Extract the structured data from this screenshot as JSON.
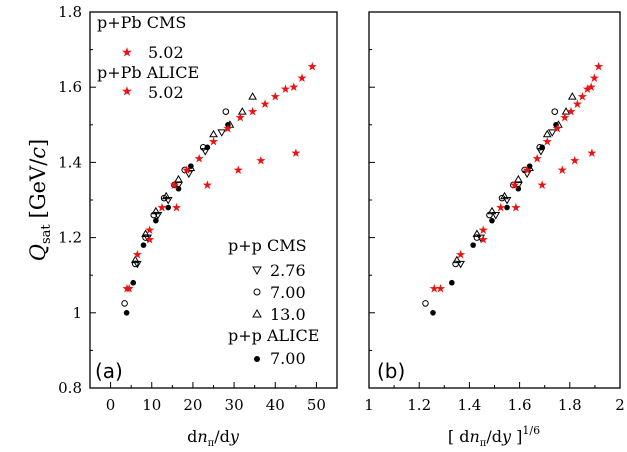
{
  "chart_data": [
    {
      "id": "a",
      "type": "scatter",
      "panel_label": "(a)",
      "xlabel": "dnπ/dy",
      "ylabel": "Qsat [GeV/c]",
      "xlim": [
        -5,
        55
      ],
      "ylim": [
        0.8,
        1.8
      ],
      "xticks": [
        0,
        10,
        20,
        30,
        40,
        50
      ],
      "yticks": [
        0.8,
        1.0,
        1.2,
        1.4,
        1.6,
        1.8
      ],
      "ytick_labels": [
        "0.8",
        "1",
        "1.2",
        "1.4",
        "1.6",
        "1.8"
      ],
      "legend_groups": [
        {
          "title": "p+Pb CMS",
          "location": "top-left",
          "entries": [
            {
              "label": "5.02",
              "marker": "star-red"
            }
          ]
        },
        {
          "title": "p+Pb ALICE",
          "location": "top-left",
          "entries": [
            {
              "label": "5.02",
              "marker": "star-red"
            }
          ]
        },
        {
          "title": "p+p CMS",
          "location": "center-right",
          "entries": [
            {
              "label": "2.76",
              "marker": "triangle-down-open"
            },
            {
              "label": "7.00",
              "marker": "circle-open"
            },
            {
              "label": "13.0",
              "marker": "triangle-up-open"
            }
          ]
        },
        {
          "title": "p+p ALICE",
          "location": "center-right",
          "entries": [
            {
              "label": "7.00",
              "marker": "circle-filled"
            }
          ]
        }
      ],
      "series": [
        {
          "marker": "circle-filled",
          "color": "#000000",
          "points": [
            [
              3.9,
              1.0
            ],
            [
              5.5,
              1.08
            ],
            [
              8.0,
              1.18
            ],
            [
              11.0,
              1.245
            ],
            [
              14.0,
              1.28
            ],
            [
              16.5,
              1.33
            ],
            [
              19.5,
              1.39
            ],
            [
              23.5,
              1.44
            ],
            [
              28.5,
              1.5
            ]
          ]
        },
        {
          "marker": "circle-open",
          "color": "#000000",
          "points": [
            [
              3.4,
              1.025
            ],
            [
              6.0,
              1.13
            ],
            [
              8.5,
              1.2
            ],
            [
              10.5,
              1.26
            ],
            [
              13.0,
              1.305
            ],
            [
              15.5,
              1.34
            ],
            [
              18.0,
              1.38
            ],
            [
              22.5,
              1.44
            ],
            [
              28.0,
              1.535
            ]
          ]
        },
        {
          "marker": "triangle-down-open",
          "color": "#000000",
          "points": [
            [
              6.5,
              1.13
            ],
            [
              9.0,
              1.2
            ],
            [
              11.5,
              1.26
            ],
            [
              14.0,
              1.3
            ],
            [
              16.5,
              1.34
            ],
            [
              19.0,
              1.37
            ],
            [
              23.0,
              1.43
            ],
            [
              27.0,
              1.48
            ]
          ]
        },
        {
          "marker": "triangle-up-open",
          "color": "#000000",
          "points": [
            [
              6.0,
              1.14
            ],
            [
              8.5,
              1.21
            ],
            [
              11.0,
              1.27
            ],
            [
              13.5,
              1.31
            ],
            [
              16.5,
              1.355
            ],
            [
              19.5,
              1.385
            ],
            [
              25.0,
              1.475
            ],
            [
              29.0,
              1.5
            ],
            [
              32.0,
              1.535
            ],
            [
              34.5,
              1.575
            ]
          ]
        },
        {
          "marker": "star-red",
          "color": "#ee1111",
          "points": [
            [
              4.0,
              1.065
            ],
            [
              6.5,
              1.155
            ],
            [
              9.5,
              1.22
            ],
            [
              12.5,
              1.28
            ],
            [
              15.5,
              1.34
            ],
            [
              18.5,
              1.38
            ],
            [
              21.5,
              1.41
            ],
            [
              25.0,
              1.455
            ],
            [
              28.5,
              1.49
            ],
            [
              31.5,
              1.52
            ],
            [
              34.5,
              1.535
            ],
            [
              37.5,
              1.555
            ],
            [
              40.0,
              1.575
            ],
            [
              42.5,
              1.595
            ],
            [
              44.5,
              1.6
            ],
            [
              46.5,
              1.625
            ],
            [
              49.0,
              1.655
            ]
          ]
        },
        {
          "marker": "star-red",
          "color": "#ee1111",
          "points": [
            [
              4.5,
              1.065
            ],
            [
              9.5,
              1.195
            ],
            [
              16.0,
              1.28
            ],
            [
              23.5,
              1.34
            ],
            [
              31.0,
              1.38
            ],
            [
              36.5,
              1.405
            ],
            [
              45.0,
              1.425
            ]
          ]
        }
      ]
    },
    {
      "id": "b",
      "type": "scatter",
      "panel_label": "(b)",
      "xlabel": "[ dnπ/dy ]1/6",
      "xlim": [
        1.0,
        2.0
      ],
      "ylim": [
        0.8,
        1.8
      ],
      "xticks": [
        1.0,
        1.2,
        1.4,
        1.6,
        1.8,
        2.0
      ],
      "xtick_labels": [
        "1",
        "1.2",
        "1.4",
        "1.6",
        "1.8",
        "2"
      ],
      "series": [
        {
          "marker": "circle-filled",
          "color": "#000000",
          "points": [
            [
              1.255,
              1.0
            ],
            [
              1.33,
              1.08
            ],
            [
              1.415,
              1.18
            ],
            [
              1.49,
              1.245
            ],
            [
              1.55,
              1.28
            ],
            [
              1.595,
              1.33
            ],
            [
              1.64,
              1.39
            ],
            [
              1.69,
              1.44
            ],
            [
              1.745,
              1.5
            ]
          ]
        },
        {
          "marker": "circle-open",
          "color": "#000000",
          "points": [
            [
              1.225,
              1.025
            ],
            [
              1.345,
              1.13
            ],
            [
              1.43,
              1.2
            ],
            [
              1.48,
              1.26
            ],
            [
              1.53,
              1.305
            ],
            [
              1.575,
              1.34
            ],
            [
              1.62,
              1.38
            ],
            [
              1.68,
              1.44
            ],
            [
              1.74,
              1.535
            ]
          ]
        },
        {
          "marker": "triangle-down-open",
          "color": "#000000",
          "points": [
            [
              1.365,
              1.13
            ],
            [
              1.445,
              1.2
            ],
            [
              1.505,
              1.26
            ],
            [
              1.55,
              1.3
            ],
            [
              1.595,
              1.34
            ],
            [
              1.63,
              1.37
            ],
            [
              1.685,
              1.43
            ],
            [
              1.73,
              1.48
            ]
          ]
        },
        {
          "marker": "triangle-up-open",
          "color": "#000000",
          "points": [
            [
              1.35,
              1.14
            ],
            [
              1.43,
              1.21
            ],
            [
              1.49,
              1.27
            ],
            [
              1.54,
              1.31
            ],
            [
              1.595,
              1.355
            ],
            [
              1.64,
              1.385
            ],
            [
              1.71,
              1.475
            ],
            [
              1.755,
              1.5
            ],
            [
              1.785,
              1.535
            ],
            [
              1.81,
              1.575
            ]
          ]
        },
        {
          "marker": "star-red",
          "color": "#ee1111",
          "points": [
            [
              1.26,
              1.065
            ],
            [
              1.365,
              1.155
            ],
            [
              1.455,
              1.22
            ],
            [
              1.525,
              1.28
            ],
            [
              1.58,
              1.34
            ],
            [
              1.63,
              1.38
            ],
            [
              1.67,
              1.41
            ],
            [
              1.71,
              1.455
            ],
            [
              1.75,
              1.49
            ],
            [
              1.78,
              1.52
            ],
            [
              1.805,
              1.535
            ],
            [
              1.83,
              1.555
            ],
            [
              1.85,
              1.575
            ],
            [
              1.87,
              1.595
            ],
            [
              1.885,
              1.6
            ],
            [
              1.898,
              1.625
            ],
            [
              1.915,
              1.655
            ]
          ]
        },
        {
          "marker": "star-red",
          "color": "#ee1111",
          "points": [
            [
              1.285,
              1.065
            ],
            [
              1.455,
              1.195
            ],
            [
              1.585,
              1.28
            ],
            [
              1.69,
              1.34
            ],
            [
              1.77,
              1.38
            ],
            [
              1.82,
              1.405
            ],
            [
              1.888,
              1.425
            ]
          ]
        }
      ]
    }
  ]
}
